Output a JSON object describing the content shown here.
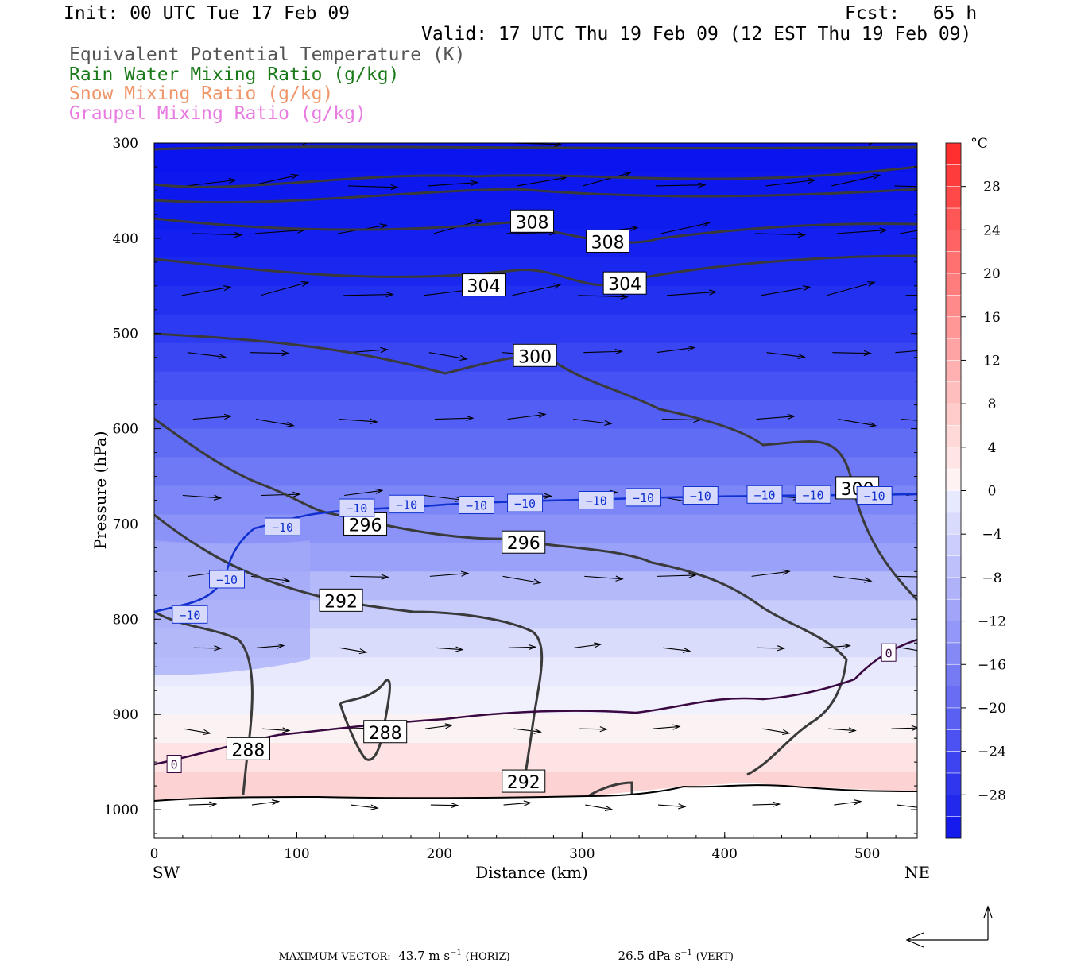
{
  "header": {
    "init": "Init: 00 UTC Tue 17 Feb 09",
    "fcst": "Fcst:   65 h",
    "valid": "Valid: 17 UTC Thu 19 Feb 09 (12 EST Thu 19 Feb 09)"
  },
  "legend": [
    {
      "label": "Equivalent Potential Temperature (K)",
      "color": "#555555"
    },
    {
      "label": "Rain Water Mixing Ratio (g/kg)",
      "color": "#1a7a1a"
    },
    {
      "label": "Snow Mixing Ratio (g/kg)",
      "color": "#f0956a"
    },
    {
      "label": "Graupel Mixing Ratio (g/kg)",
      "color": "#e87ae0"
    }
  ],
  "chart_data": {
    "type": "cross-section",
    "x_axis": {
      "label": "Distance (km)",
      "ticks": [
        "0",
        "100",
        "200",
        "300",
        "400",
        "500"
      ],
      "range": [
        0,
        535
      ],
      "left_end": "SW",
      "right_end": "NE"
    },
    "y_axis": {
      "label": "Pressure (hPa)",
      "ticks": [
        "300",
        "400",
        "500",
        "600",
        "700",
        "800",
        "900",
        "1000"
      ],
      "range": [
        1030,
        300
      ]
    },
    "colorbar": {
      "unit": "°C",
      "tick_labels": [
        "28",
        "24",
        "20",
        "16",
        "12",
        "8",
        "4",
        "0",
        "-4",
        "-8",
        "-12",
        "-16",
        "-20",
        "-24",
        "-28"
      ],
      "range": [
        32,
        -32
      ]
    },
    "theta_e_labels": [
      {
        "text": "308",
        "x": 265,
        "p": 382
      },
      {
        "text": "308",
        "x": 318,
        "p": 403
      },
      {
        "text": "304",
        "x": 231,
        "p": 449
      },
      {
        "text": "304",
        "x": 330,
        "p": 447
      },
      {
        "text": "300",
        "x": 267,
        "p": 523
      },
      {
        "text": "300",
        "x": 493,
        "p": 662
      },
      {
        "text": "296",
        "x": 148,
        "p": 700
      },
      {
        "text": "296",
        "x": 259,
        "p": 719
      },
      {
        "text": "292",
        "x": 131,
        "p": 780
      },
      {
        "text": "292",
        "x": 259,
        "p": 970
      },
      {
        "text": "288",
        "x": 66,
        "p": 936
      },
      {
        "text": "288",
        "x": 162,
        "p": 918
      }
    ],
    "isotherm_labels": [
      {
        "text": "−10",
        "x": 25,
        "p": 795
      },
      {
        "text": "−10",
        "x": 51,
        "p": 758
      },
      {
        "text": "−10",
        "x": 90,
        "p": 703
      },
      {
        "text": "−10",
        "x": 142,
        "p": 683
      },
      {
        "text": "−10",
        "x": 177,
        "p": 679
      },
      {
        "text": "−10",
        "x": 226,
        "p": 680
      },
      {
        "text": "−10",
        "x": 260,
        "p": 678
      },
      {
        "text": "−10",
        "x": 310,
        "p": 675
      },
      {
        "text": "−10",
        "x": 343,
        "p": 672
      },
      {
        "text": "−10",
        "x": 383,
        "p": 670
      },
      {
        "text": "−10",
        "x": 428,
        "p": 669
      },
      {
        "text": "−10",
        "x": 462,
        "p": 669
      },
      {
        "text": "−10",
        "x": 505,
        "p": 670
      },
      {
        "text": "0",
        "x": 14,
        "p": 952
      },
      {
        "text": "0",
        "x": 515,
        "p": 835
      }
    ],
    "max_vector": {
      "label": "MAXIMUM VECTOR:",
      "horiz_value": "43.7",
      "horiz_unit": "m s",
      "horiz_exp": "−1",
      "horiz_tag": "(HORIZ)",
      "vert_value": "26.5",
      "vert_unit": "dPa s",
      "vert_exp": "−1",
      "vert_tag": "(VERT)"
    }
  }
}
